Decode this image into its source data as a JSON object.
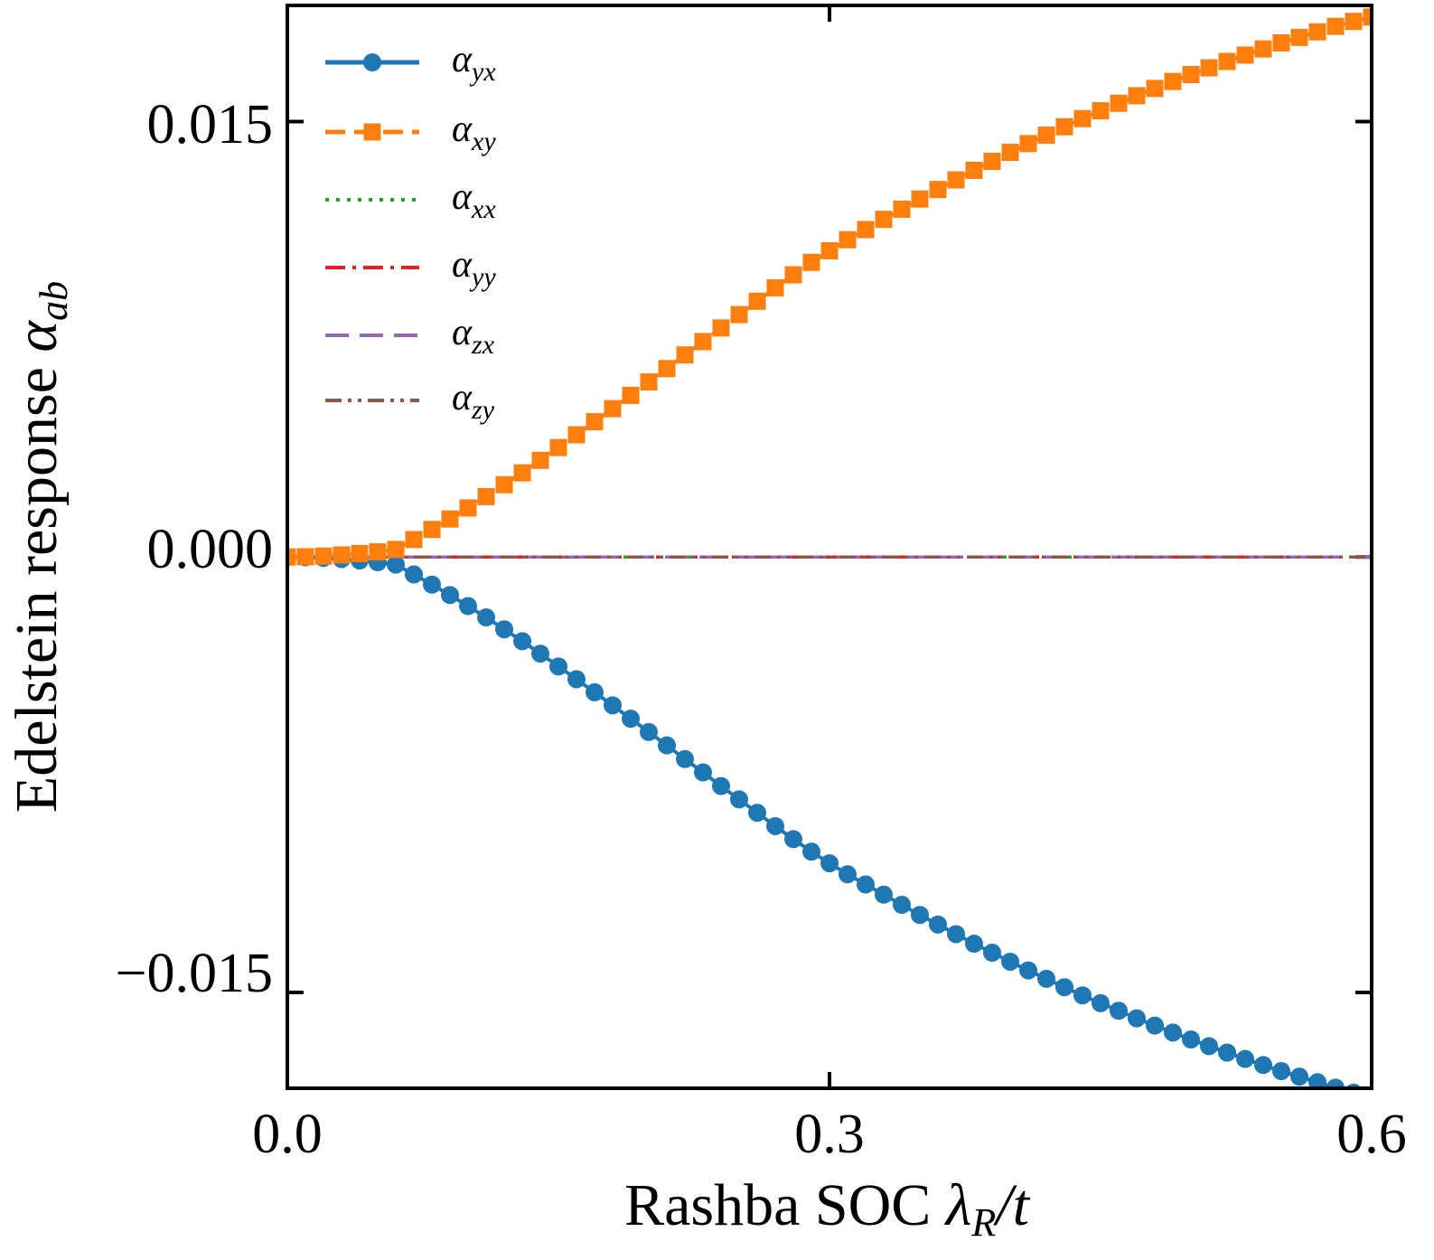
{
  "chart_data": {
    "type": "line",
    "title": "",
    "xlabel": "Rashba SOC λ_R/t",
    "xlabel_parts": {
      "prefix": "Rashba SOC ",
      "symbol": "λ",
      "sub": "R",
      "suffix": "/t"
    },
    "ylabel": "Edelstein response α_ab",
    "ylabel_parts": {
      "prefix": "Edelstein response ",
      "symbol": "α",
      "sub": "ab"
    },
    "xlim": [
      0.0,
      0.6
    ],
    "ylim": [
      -0.0183,
      0.019
    ],
    "xticks": [
      0.0,
      0.3,
      0.6
    ],
    "xtick_labels": [
      "0.0",
      "0.3",
      "0.6"
    ],
    "yticks": [
      0.015,
      0.0,
      -0.015
    ],
    "ytick_labels": [
      "0.015",
      "0.000",
      "−0.015"
    ],
    "grid": false,
    "legend_position": "top-left",
    "x_step": 0.01,
    "x_count": 61,
    "series": [
      {
        "name": "α_yx",
        "symbol": "α",
        "sub": "yx",
        "color": "#1f77b4",
        "style": "solid",
        "marker": "circle",
        "values": [
          0.0,
          -1e-05,
          -3e-05,
          -7e-05,
          -0.00012,
          -0.00018,
          -0.00026,
          -0.0006,
          -0.00095,
          -0.00131,
          -0.00169,
          -0.00208,
          -0.00249,
          -0.0029,
          -0.00333,
          -0.00377,
          -0.00421,
          -0.00466,
          -0.00511,
          -0.00557,
          -0.00603,
          -0.00649,
          -0.00696,
          -0.00742,
          -0.00789,
          -0.00835,
          -0.00881,
          -0.00927,
          -0.00972,
          -0.01015,
          -0.01055,
          -0.01093,
          -0.01128,
          -0.01163,
          -0.01198,
          -0.01233,
          -0.01266,
          -0.01299,
          -0.01332,
          -0.01363,
          -0.01394,
          -0.01424,
          -0.01453,
          -0.01482,
          -0.0151,
          -0.01537,
          -0.01563,
          -0.01589,
          -0.01614,
          -0.01638,
          -0.01662,
          -0.01685,
          -0.01707,
          -0.01729,
          -0.0175,
          -0.01771,
          -0.0179,
          -0.01809,
          -0.01828,
          -0.01845,
          -0.0186
        ]
      },
      {
        "name": "α_xy",
        "symbol": "α",
        "sub": "xy",
        "color": "#ff7f0e",
        "style": "dashed",
        "marker": "square",
        "values": [
          0.0,
          1e-05,
          3e-05,
          7e-05,
          0.00012,
          0.00018,
          0.00026,
          0.0006,
          0.00095,
          0.00131,
          0.00169,
          0.00208,
          0.00249,
          0.0029,
          0.00333,
          0.00377,
          0.00421,
          0.00466,
          0.00511,
          0.00557,
          0.00603,
          0.00649,
          0.00696,
          0.00742,
          0.00789,
          0.00835,
          0.00881,
          0.00927,
          0.00972,
          0.01015,
          0.01055,
          0.01093,
          0.01128,
          0.01163,
          0.01198,
          0.01233,
          0.01266,
          0.01299,
          0.01332,
          0.01363,
          0.01394,
          0.01424,
          0.01453,
          0.01482,
          0.0151,
          0.01537,
          0.01563,
          0.01589,
          0.01614,
          0.01638,
          0.01662,
          0.01685,
          0.01707,
          0.01729,
          0.0175,
          0.01771,
          0.0179,
          0.01809,
          0.01828,
          0.01845,
          0.0186
        ]
      },
      {
        "name": "α_xx",
        "symbol": "α",
        "sub": "xx",
        "color": "#2ca02c",
        "style": "dotted",
        "marker": "none",
        "constant": 0.0
      },
      {
        "name": "α_yy",
        "symbol": "α",
        "sub": "yy",
        "color": "#d62728",
        "style": "dashdot",
        "marker": "none",
        "constant": 0.0
      },
      {
        "name": "α_zx",
        "symbol": "α",
        "sub": "zx",
        "color": "#9467bd",
        "style": "longdash",
        "marker": "none",
        "constant": 0.0
      },
      {
        "name": "α_zy",
        "symbol": "α",
        "sub": "zy",
        "color": "#8c564b",
        "style": "dashdotdot",
        "marker": "none",
        "constant": 0.0
      }
    ]
  }
}
